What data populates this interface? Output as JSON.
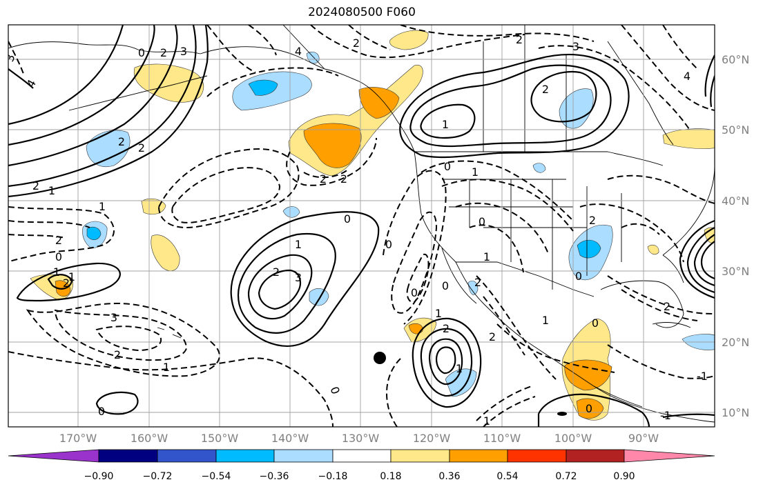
{
  "title": "2024080500 F060",
  "latitude_labels": [
    "60°N",
    "50°N",
    "40°N",
    "30°N",
    "20°N",
    "10°N"
  ],
  "longitude_labels": [
    "170°W",
    "160°W",
    "150°W",
    "140°W",
    "130°W",
    "120°W",
    "110°W",
    "100°W",
    "90°W"
  ],
  "contour_labels": [
    "3",
    "4",
    "0",
    "2",
    "3",
    "2",
    "2",
    "1",
    "2",
    "0",
    "2",
    "1",
    "4",
    "2",
    "1",
    "2",
    "1",
    "0",
    "1",
    "2",
    "3",
    "0",
    "1",
    "2",
    "3",
    "2",
    "2",
    "1",
    "0",
    "2",
    "3",
    "2",
    "4",
    "0",
    "0",
    "1",
    "2",
    "1",
    "0",
    "1",
    "0",
    "2",
    "1",
    "2",
    "-1",
    "0",
    "2",
    "-1",
    "0",
    "0",
    "2",
    "1",
    "0",
    "1"
  ],
  "colorbar": {
    "tick_labels": [
      "−0.90",
      "−0.72",
      "−0.54",
      "−0.36",
      "−0.18",
      "0.18",
      "0.36",
      "0.54",
      "0.72",
      "0.90"
    ],
    "colors": [
      "#9933cc",
      "#000080",
      "#3355cc",
      "#00bbff",
      "#aaddff",
      "#ffffff",
      "#ffe88a",
      "#ffa000",
      "#ff3300",
      "#b22222",
      "#ff88aa"
    ]
  },
  "shading_colors": {
    "light_yellow": "#ffe88a",
    "orange": "#ffa000",
    "light_blue": "#aaddff",
    "blue": "#00bbff"
  },
  "marker": {
    "symbol": "filled-circle",
    "color": "#000000"
  }
}
